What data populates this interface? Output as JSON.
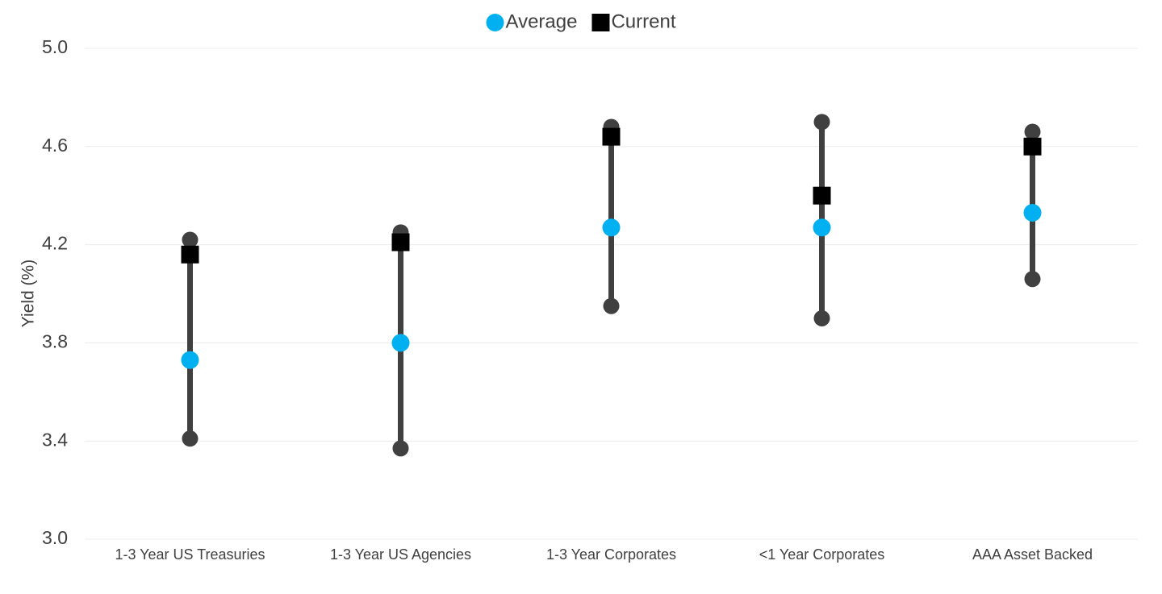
{
  "chart_data": {
    "type": "dumbbell",
    "y_label": "Yield (%)",
    "categories": [
      "1-3 Year US Treasuries",
      "1-3 Year US Agencies",
      "1-3 Year Corporates",
      "<1 Year Corporates",
      "AAA Asset Backed"
    ],
    "low": [
      3.41,
      3.37,
      3.95,
      3.9,
      4.06
    ],
    "high": [
      4.22,
      4.25,
      4.68,
      4.7,
      4.66
    ],
    "range_color": "#404040",
    "series": [
      {
        "name": "Average",
        "color": "#00b0f0",
        "marker": "circle",
        "values": [
          3.73,
          3.8,
          4.27,
          4.27,
          4.33
        ]
      },
      {
        "name": "Current",
        "color": "#000000",
        "marker": "square",
        "values": [
          4.16,
          4.21,
          4.64,
          4.4,
          4.6
        ]
      }
    ],
    "ylim": [
      3,
      5
    ],
    "yticks": [
      {
        "value": 3,
        "label": "3.0"
      },
      {
        "value": 3.4,
        "label": "3.4"
      },
      {
        "value": 3.8,
        "label": "3.8"
      },
      {
        "value": 4.2,
        "label": "4.2"
      },
      {
        "value": 4.6,
        "label": "4.6"
      },
      {
        "value": 5,
        "label": "5.0"
      }
    ],
    "grid": true,
    "legend": "top"
  }
}
